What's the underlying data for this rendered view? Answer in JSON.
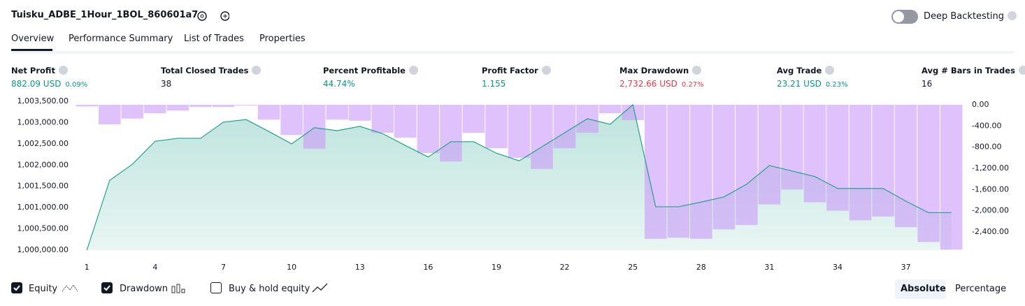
{
  "header": {
    "title": "Tuisku_ADBE_1Hour_1BOL_860601a7",
    "toggle_label": "Deep Backtesting"
  },
  "tabs": [
    "Overview",
    "Performance Summary",
    "List of Trades",
    "Properties"
  ],
  "metrics": [
    {
      "label": "Net Profit",
      "value": "882.09 USD",
      "percent": "0.09%"
    },
    {
      "label": "Total Closed Trades",
      "value": "38"
    },
    {
      "label": "Percent Profitable",
      "value": "44.74%"
    },
    {
      "label": "Profit Factor",
      "value": "1.155"
    },
    {
      "label": "Max Drawdown",
      "value": "2,732.66 USD",
      "percent": "0.27%"
    },
    {
      "label": "Avg Trade",
      "value": "23.21 USD",
      "percent": "0.23%"
    },
    {
      "label": "Avg # Bars in Trades",
      "value": "16"
    }
  ],
  "chart_data": {
    "type": "combo",
    "x": [
      1,
      2,
      3,
      4,
      5,
      6,
      7,
      8,
      9,
      10,
      11,
      12,
      13,
      14,
      15,
      16,
      17,
      18,
      19,
      20,
      21,
      22,
      23,
      24,
      25,
      26,
      27,
      28,
      29,
      30,
      31,
      32,
      33,
      34,
      35,
      36,
      37,
      38,
      39
    ],
    "series": [
      {
        "name": "Equity",
        "type": "area",
        "color": "#22a28b",
        "values": [
          1000000,
          1001640,
          1002020,
          1002560,
          1002630,
          1002630,
          1003010,
          1003070,
          1002790,
          1002500,
          1002880,
          1002810,
          1002910,
          1002740,
          1002460,
          1002190,
          1002550,
          1002550,
          1002280,
          1002100,
          1002430,
          1002760,
          1003090,
          1002960,
          1003420,
          1001020,
          1001020,
          1001130,
          1001250,
          1001550,
          1001990,
          1001860,
          1001730,
          1001450,
          1001450,
          1001450,
          1001150,
          1000880,
          1000882
        ]
      },
      {
        "name": "Drawdown",
        "type": "bar",
        "axis": "y2",
        "color": "#c99af8",
        "values": [
          -30,
          -370,
          -260,
          -160,
          -110,
          -40,
          -40,
          -15,
          -280,
          -570,
          -830,
          -280,
          -300,
          -530,
          -620,
          -910,
          -1070,
          -530,
          -820,
          -1000,
          -1210,
          -820,
          -530,
          -160,
          -290,
          -2530,
          -2510,
          -2530,
          -2350,
          -2270,
          -1880,
          -1600,
          -1840,
          -2000,
          -2180,
          -2110,
          -2310,
          -2590,
          -2733
        ]
      }
    ],
    "xlim": [
      0.5,
      39.5
    ],
    "xticks": [
      1,
      4,
      7,
      10,
      13,
      16,
      19,
      22,
      25,
      28,
      31,
      34,
      37
    ],
    "ylim": [
      1000000,
      1003500
    ],
    "yticks": [
      {
        "value": 1000000,
        "label": "1,000,000.00"
      },
      {
        "value": 1000500,
        "label": "1,000,500.00"
      },
      {
        "value": 1001000,
        "label": "1,001,000.00"
      },
      {
        "value": 1001500,
        "label": "1,001,500.00"
      },
      {
        "value": 1002000,
        "label": "1,002,000.00"
      },
      {
        "value": 1002500,
        "label": "1,002,500.00"
      },
      {
        "value": 1003000,
        "label": "1,003,000.00"
      },
      {
        "value": 1003500,
        "label": "1,003,500.00"
      }
    ],
    "y2lim": [
      -2743,
      66
    ],
    "y2ticks": [
      {
        "value": 0,
        "label": "0.00"
      },
      {
        "value": -400,
        "label": "-400.00"
      },
      {
        "value": -800,
        "label": "-800.00"
      },
      {
        "value": -1200,
        "label": "-1,200.00"
      },
      {
        "value": -1600,
        "label": "-1,600.00"
      },
      {
        "value": -2000,
        "label": "-2,000.00"
      },
      {
        "value": -2400,
        "label": "-2,400.00"
      }
    ]
  },
  "controls": {
    "buy_hold_label": "Buy & hold equity",
    "modes": [
      "Absolute",
      "Percentage"
    ]
  }
}
